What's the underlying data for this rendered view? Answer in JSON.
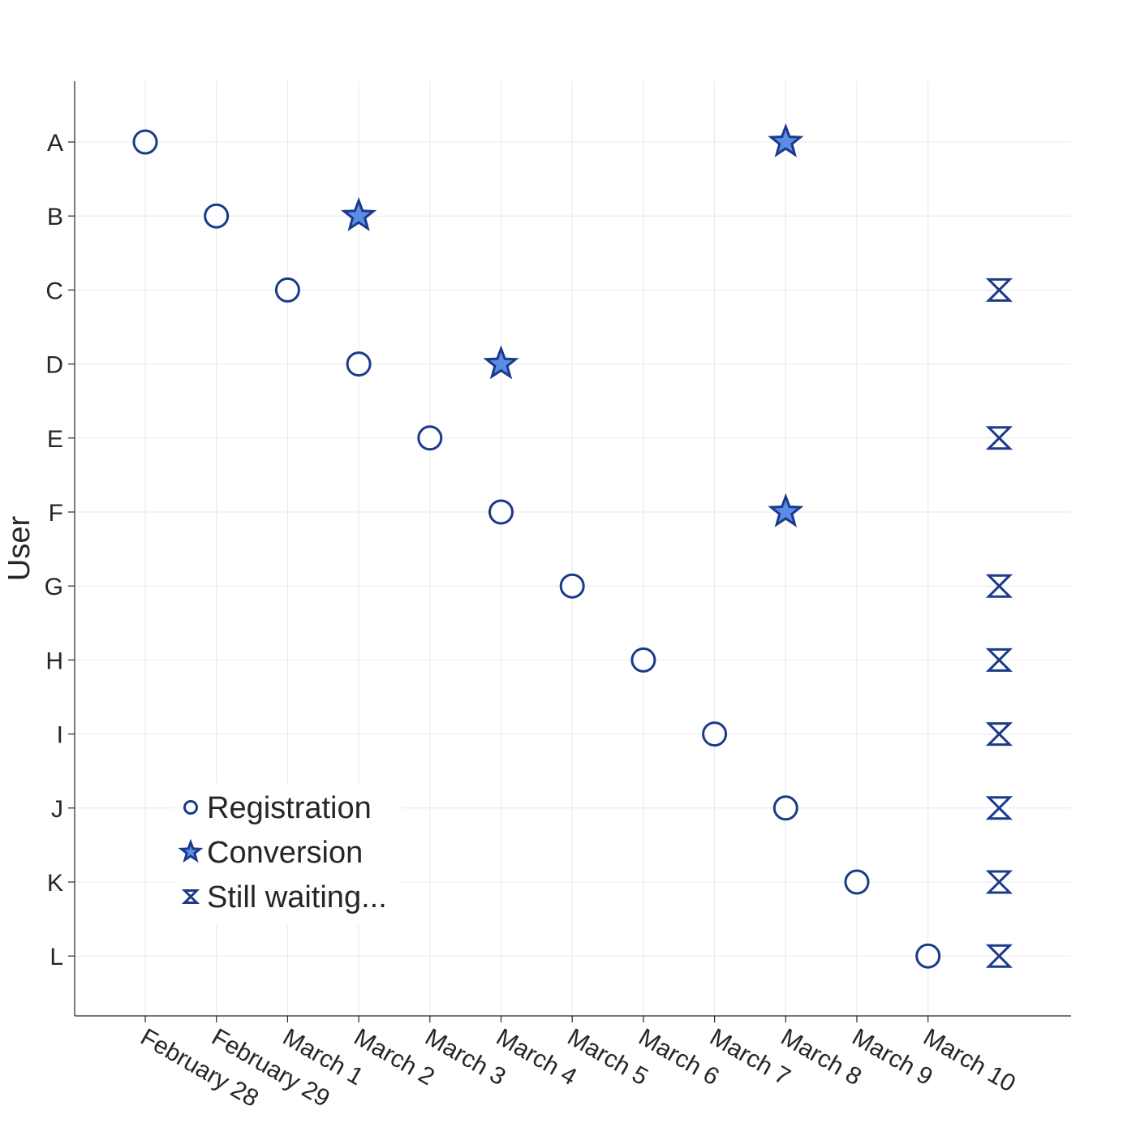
{
  "chart_data": {
    "type": "scatter",
    "title": "",
    "xlabel": "",
    "ylabel": "User",
    "grid": true,
    "legend_position": "bottom-left",
    "colors": {
      "edge": "#1a3a8a",
      "star_fill": "#5b8de8",
      "circle_fill": "#ffffff",
      "axis": "#262626",
      "grid": "#e8e8e8"
    },
    "x_categories": [
      "February 28",
      "February 29",
      "March 1",
      "March 2",
      "March 3",
      "March 4",
      "March 5",
      "March 6",
      "March 7",
      "March 8",
      "March 9",
      "March 10"
    ],
    "users": [
      "A",
      "B",
      "C",
      "D",
      "E",
      "F",
      "G",
      "H",
      "I",
      "J",
      "K",
      "L"
    ],
    "series": [
      {
        "name": "Registration",
        "marker": "circle",
        "points": [
          {
            "user": "A",
            "date": "February 28"
          },
          {
            "user": "B",
            "date": "February 29"
          },
          {
            "user": "C",
            "date": "March 1"
          },
          {
            "user": "D",
            "date": "March 2"
          },
          {
            "user": "E",
            "date": "March 3"
          },
          {
            "user": "F",
            "date": "March 4"
          },
          {
            "user": "G",
            "date": "March 5"
          },
          {
            "user": "H",
            "date": "March 6"
          },
          {
            "user": "I",
            "date": "March 7"
          },
          {
            "user": "J",
            "date": "March 8"
          },
          {
            "user": "K",
            "date": "March 9"
          },
          {
            "user": "L",
            "date": "March 10"
          }
        ]
      },
      {
        "name": "Conversion",
        "marker": "star",
        "points": [
          {
            "user": "A",
            "date": "March 8"
          },
          {
            "user": "B",
            "date": "March 2"
          },
          {
            "user": "D",
            "date": "March 4"
          },
          {
            "user": "F",
            "date": "March 8"
          }
        ]
      },
      {
        "name": "Still waiting...",
        "marker": "hourglass",
        "points": [
          {
            "user": "C"
          },
          {
            "user": "E"
          },
          {
            "user": "G"
          },
          {
            "user": "H"
          },
          {
            "user": "I"
          },
          {
            "user": "J"
          },
          {
            "user": "K"
          },
          {
            "user": "L"
          }
        ]
      }
    ]
  }
}
